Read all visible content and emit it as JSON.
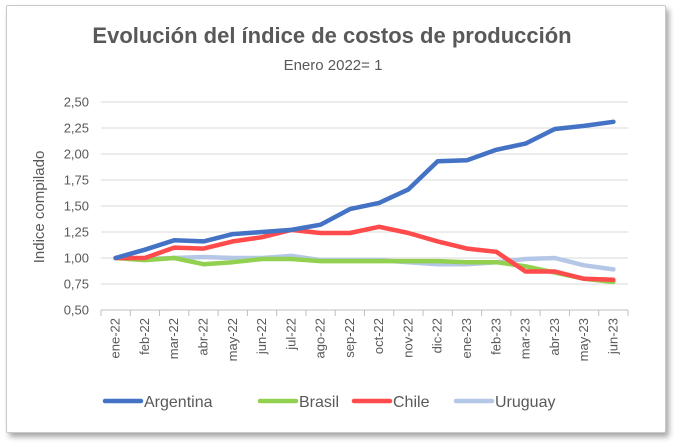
{
  "chart_data": {
    "type": "line",
    "title": "Evolución del índice de costos de producción",
    "subtitle": "Enero 2022= 1",
    "xlabel": "",
    "ylabel": "Indice compilado",
    "ylim": [
      0.5,
      2.5
    ],
    "yticks": [
      "0,50",
      "0,75",
      "1,00",
      "1,25",
      "1,50",
      "1,75",
      "2,00",
      "2,25",
      "2,50"
    ],
    "categories": [
      "ene-22",
      "feb-22",
      "mar-22",
      "abr-22",
      "may-22",
      "jun-22",
      "jul-22",
      "ago-22",
      "sep-22",
      "oct-22",
      "nov-22",
      "dic-22",
      "ene-23",
      "feb-23",
      "mar-23",
      "abr-23",
      "may-23",
      "jun-23"
    ],
    "grid": true,
    "legend_position": "bottom",
    "series": [
      {
        "name": "Argentina",
        "color": "#4472c4",
        "values": [
          1.0,
          1.08,
          1.17,
          1.16,
          1.23,
          1.25,
          1.27,
          1.32,
          1.47,
          1.53,
          1.66,
          1.93,
          1.94,
          2.04,
          2.1,
          2.24,
          2.27,
          2.31
        ]
      },
      {
        "name": "Brasil",
        "color": "#92d050",
        "values": [
          1.0,
          0.98,
          1.0,
          0.94,
          0.96,
          0.99,
          0.99,
          0.97,
          0.97,
          0.97,
          0.97,
          0.97,
          0.96,
          0.96,
          0.92,
          0.86,
          0.8,
          0.77
        ]
      },
      {
        "name": "Chile",
        "color": "#ff4b4b",
        "values": [
          1.0,
          1.0,
          1.1,
          1.09,
          1.16,
          1.2,
          1.27,
          1.24,
          1.24,
          1.3,
          1.24,
          1.16,
          1.09,
          1.06,
          0.87,
          0.87,
          0.8,
          0.79
        ]
      },
      {
        "name": "Uruguay",
        "color": "#b4c7e7",
        "values": [
          1.0,
          0.99,
          1.0,
          1.01,
          1.0,
          1.0,
          1.02,
          0.98,
          0.98,
          0.98,
          0.96,
          0.94,
          0.94,
          0.96,
          0.99,
          1.0,
          0.93,
          0.89
        ]
      }
    ]
  }
}
